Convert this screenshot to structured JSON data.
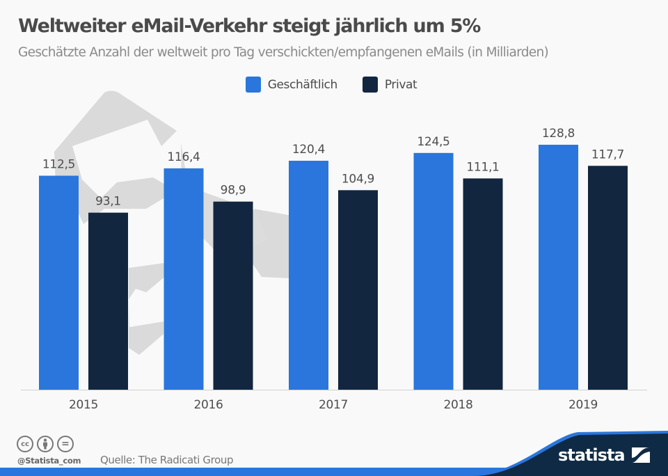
{
  "header": {
    "title": "Weltweiter eMail-Verkehr steigt jährlich um 5%",
    "subtitle": "Geschätzte Anzahl der weltweit pro Tag verschickten/empfangenen eMails (in Milliarden)"
  },
  "colors": {
    "business": "#2a76dc",
    "private": "#12263f",
    "background": "#f9f9f9",
    "envelope": "#dadada",
    "footer_band": "#0f2a44",
    "footer_accent": "#2a76dc"
  },
  "chart_data": {
    "type": "bar",
    "title": "Weltweiter eMail-Verkehr steigt jährlich um 5%",
    "subtitle": "Geschätzte Anzahl der weltweit pro Tag verschickten/empfangenen eMails (in Milliarden)",
    "categories": [
      "2015",
      "2016",
      "2017",
      "2018",
      "2019"
    ],
    "series": [
      {
        "name": "Geschäftlich",
        "values": [
          112.5,
          116.4,
          120.4,
          124.5,
          128.8
        ],
        "labels": [
          "112,5",
          "116,4",
          "120,4",
          "124,5",
          "128,8"
        ]
      },
      {
        "name": "Privat",
        "values": [
          93.1,
          98.9,
          104.9,
          111.1,
          117.7
        ],
        "labels": [
          "93,1",
          "98,9",
          "104,9",
          "111,1",
          "117,7"
        ]
      }
    ],
    "xlabel": "",
    "ylabel": "",
    "ylim": [
      0,
      130
    ],
    "grid": false,
    "legend": "top-center"
  },
  "legend": {
    "items": [
      {
        "label": "Geschäftlich"
      },
      {
        "label": "Privat"
      }
    ]
  },
  "footer": {
    "license_icons": [
      "cc-icon",
      "attribution-icon",
      "no-derivatives-icon"
    ],
    "cc_text": "cc",
    "nd_text": "=",
    "handle": "@Statista_com",
    "source": "Quelle: The Radicati Group",
    "logo": "statista"
  }
}
